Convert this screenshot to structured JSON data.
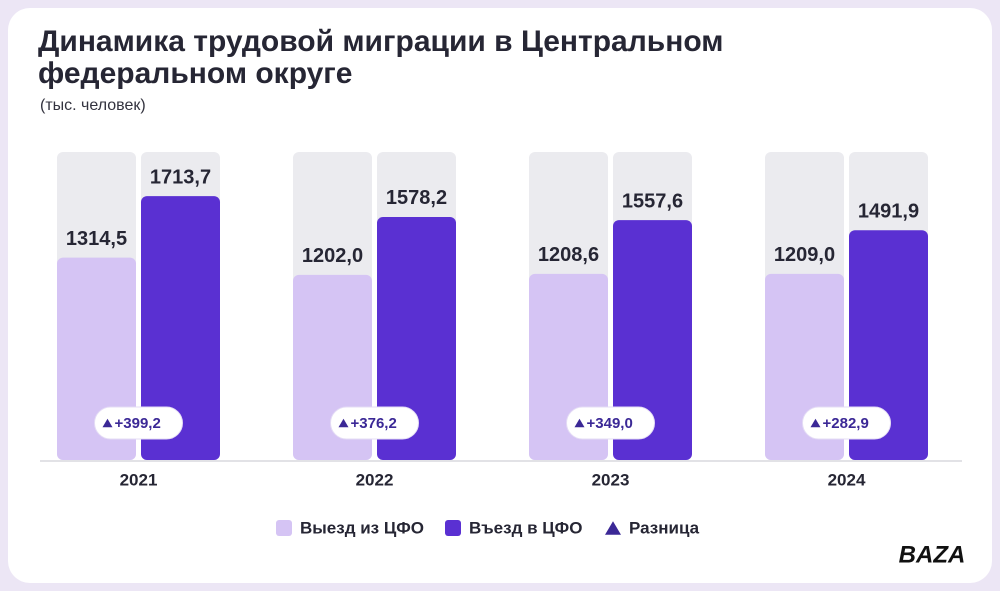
{
  "chart_data": {
    "type": "bar",
    "title": "Динамика трудовой миграции в Центральном федеральном округе",
    "subtitle": "(тыс. человек)",
    "categories": [
      "2021",
      "2022",
      "2023",
      "2024"
    ],
    "series": [
      {
        "name": "Выезд из ЦФО",
        "color": "#d5c4f4",
        "values": [
          1314.5,
          1202.0,
          1208.6,
          1209.0
        ],
        "value_labels": [
          "1314,5",
          "1202,0",
          "1208,6",
          "1209,0"
        ]
      },
      {
        "name": "Въезд в ЦФО",
        "color": "#5a30d2",
        "values": [
          1713.7,
          1578.2,
          1557.6,
          1491.9
        ],
        "value_labels": [
          "1713,7",
          "1578,2",
          "1557,6",
          "1491,9"
        ]
      },
      {
        "name": "Разница",
        "color": "#3b2896",
        "values": [
          399.2,
          376.2,
          349.0,
          282.9
        ],
        "value_labels": [
          "+399,2",
          "+376,2",
          "+349,0",
          "+282,9"
        ]
      }
    ],
    "ylim": [
      0,
      2000
    ],
    "legend": "bottom"
  },
  "logo": "BAZA"
}
